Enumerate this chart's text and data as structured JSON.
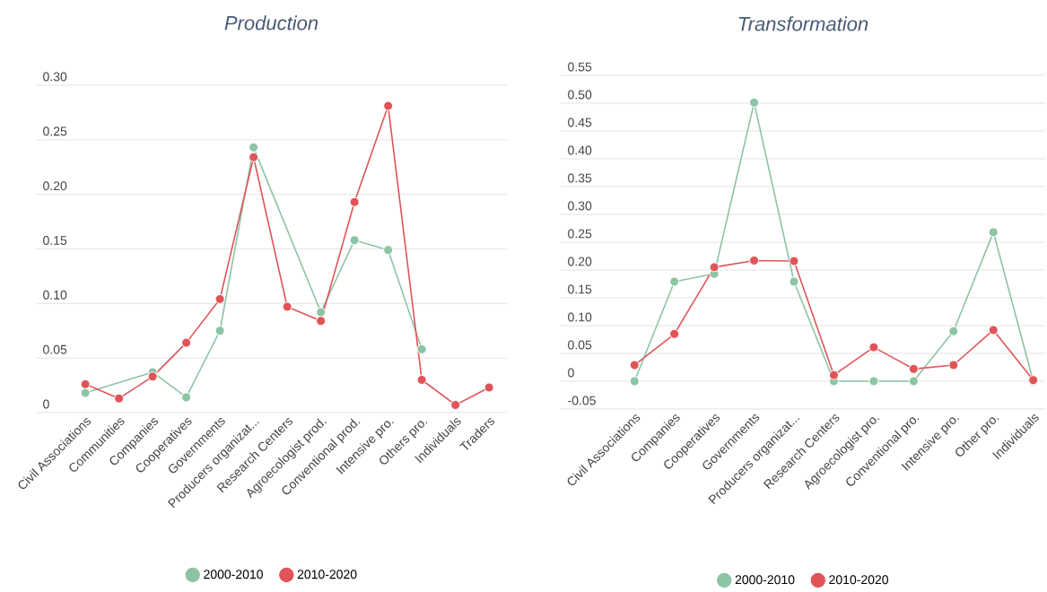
{
  "chart_data": [
    {
      "type": "line",
      "title": "Production",
      "categories": [
        "Civil Associations",
        "Communities",
        "Companies",
        "Cooperatives",
        "Governments",
        "Producers organizat...",
        "Research Centers",
        "Agroecologist prod.",
        "Conventional prod.",
        "Intensive pro.",
        "Others pro.",
        "Individuals",
        "Traders"
      ],
      "series": [
        {
          "name": "2000-2010",
          "color": "#8cc4a4",
          "values": [
            0.018,
            null,
            0.037,
            0.014,
            0.075,
            0.243,
            null,
            0.092,
            0.158,
            0.149,
            0.058,
            null,
            null
          ]
        },
        {
          "name": "2010-2020",
          "color": "#e05458",
          "values": [
            0.026,
            0.013,
            0.033,
            0.064,
            0.104,
            0.234,
            0.097,
            0.084,
            0.193,
            0.281,
            0.03,
            0.007,
            0.023
          ]
        }
      ],
      "ylim": [
        0,
        0.3
      ],
      "yticks": [
        0,
        0.05,
        {
          "value": 0.1,
          "label": "0.10"
        },
        0.15,
        {
          "value": 0.2,
          "label": "0.20"
        },
        0.25,
        {
          "value": 0.3,
          "label": "0.30"
        }
      ],
      "grid": "y",
      "legend": "bottom",
      "marker": "circle"
    },
    {
      "type": "line",
      "title": "Transformation",
      "categories": [
        "Civil Associations",
        "Companies",
        "Cooperatives",
        "Governments",
        "Producers organizat...",
        "Research Centers",
        "Agroecologist pro.",
        "Conventional pro.",
        "Intensive pro.",
        "Other pro.",
        "Individuals"
      ],
      "series": [
        {
          "name": "2000-2010",
          "color": "#8cc4a4",
          "values": [
            0,
            0.179,
            0.193,
            0.501,
            0.179,
            0,
            0,
            0,
            0.09,
            0.268,
            0
          ]
        },
        {
          "name": "2010-2020",
          "color": "#e05458",
          "values": [
            0.029,
            0.085,
            0.205,
            0.217,
            0.216,
            0.011,
            0.061,
            0.022,
            0.029,
            0.092,
            0.002
          ]
        }
      ],
      "ylim": [
        -0.05,
        0.55
      ],
      "yticks": [
        -0.05,
        0,
        0.05,
        {
          "value": 0.1,
          "label": "0.10"
        },
        0.15,
        {
          "value": 0.2,
          "label": "0.20"
        },
        0.25,
        {
          "value": 0.3,
          "label": "0.30"
        },
        0.35,
        {
          "value": 0.4,
          "label": "0.40"
        },
        0.45,
        {
          "value": 0.5,
          "label": "0.50"
        },
        0.55
      ],
      "grid": "y",
      "legend": "bottom",
      "marker": "circle"
    }
  ]
}
